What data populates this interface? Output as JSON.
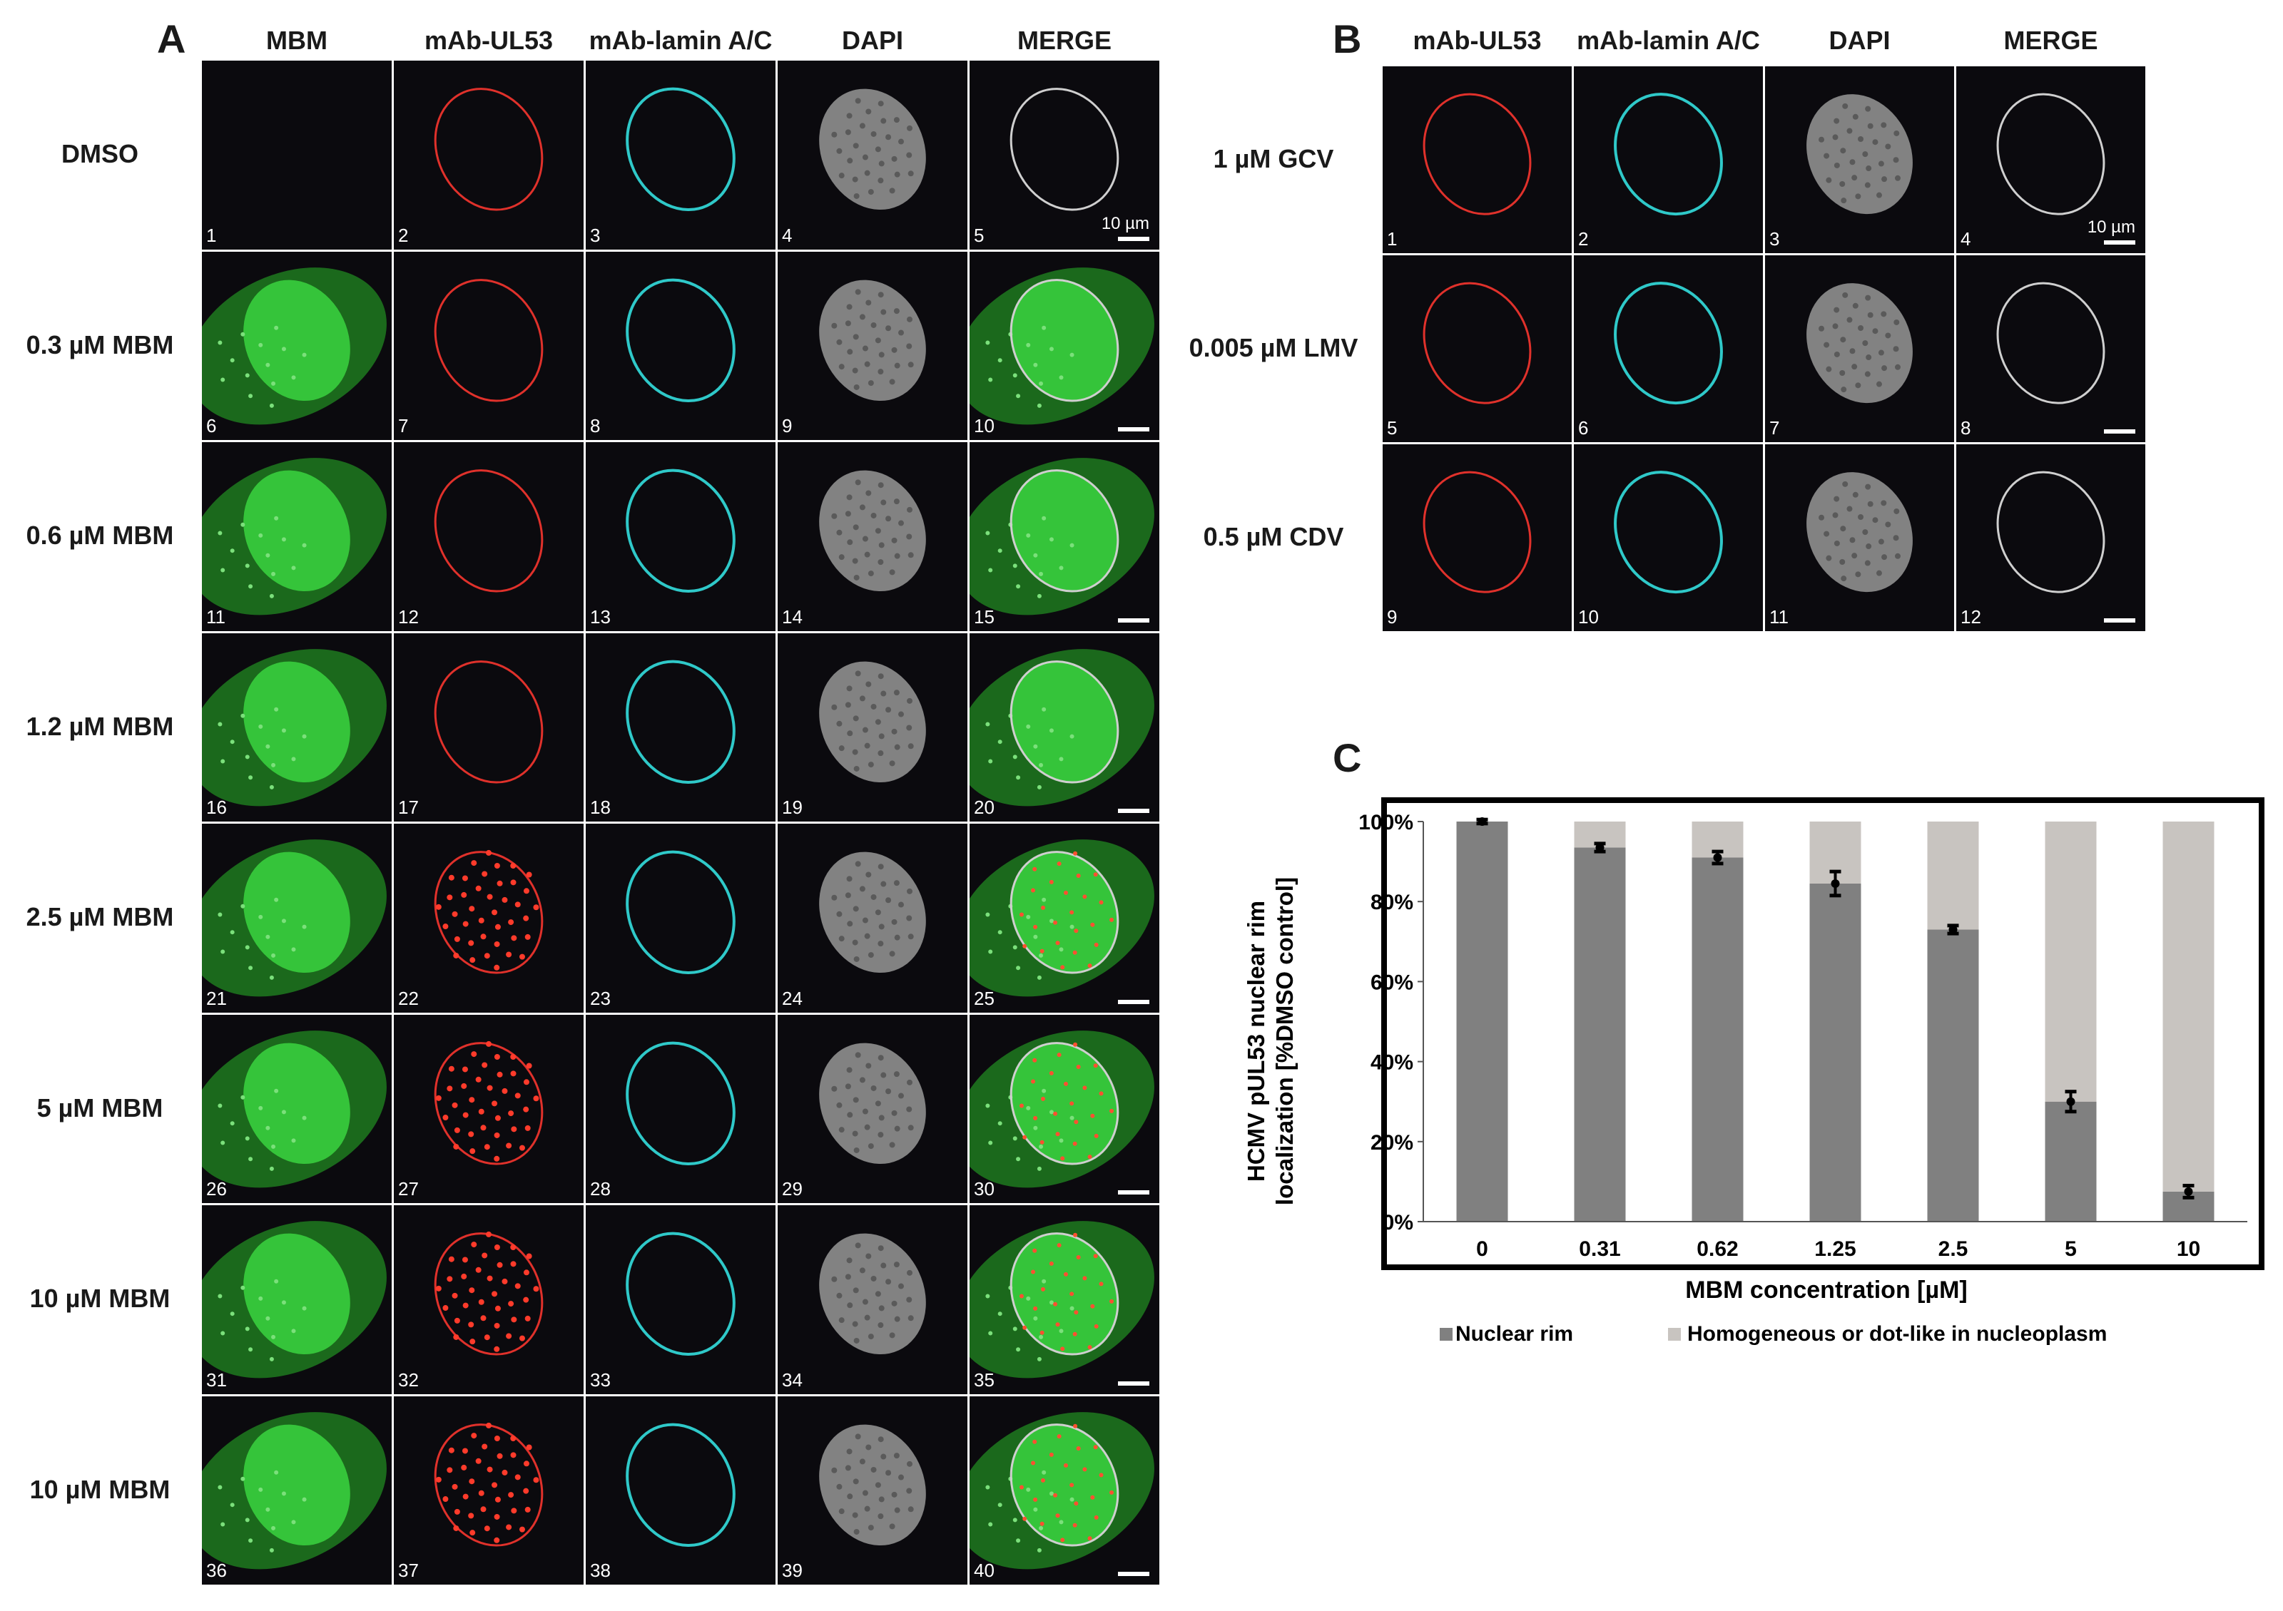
{
  "panel_A": {
    "letter": "A",
    "columns": [
      "MBM",
      "mAb-UL53",
      "mAb-lamin A/C",
      "DAPI",
      "MERGE"
    ],
    "rows": [
      "DMSO",
      "0.3 µM MBM",
      "0.6 µM MBM",
      "1.2 µM MBM",
      "2.5 µM MBM",
      "5 µM MBM",
      "10 µM MBM",
      "10 µM MBM"
    ],
    "scale_label": "10 µm"
  },
  "panel_B": {
    "letter": "B",
    "columns": [
      "mAb-UL53",
      "mAb-lamin A/C",
      "DAPI",
      "MERGE"
    ],
    "rows": [
      "1 µM GCV",
      "0.005 µM LMV",
      "0.5 µM CDV"
    ],
    "scale_label": "10 µm"
  },
  "panel_C": {
    "letter": "C",
    "chart_data": {
      "type": "bar",
      "stacked": true,
      "categories": [
        "0",
        "0.31",
        "0.62",
        "1.25",
        "2.5",
        "5",
        "10"
      ],
      "series": [
        {
          "name": "Nuclear rim",
          "values": [
            100,
            93.5,
            91,
            84.5,
            73,
            30,
            7.5
          ],
          "error": [
            0.5,
            1,
            1.5,
            3,
            1,
            2.5,
            1.5
          ],
          "color": "#808080"
        },
        {
          "name": "Homogeneous or dot-like in nucleoplasm",
          "values": [
            0,
            6.5,
            9,
            15.5,
            27,
            70,
            92.5
          ],
          "color": "#c8c4c0"
        }
      ],
      "xlabel": "MBM concentration [µM]",
      "ylabel_lines": [
        "HCMV pUL53 nuclear rim",
        "localization [%DMSO control]"
      ],
      "y_ticks": [
        "0%",
        "20%",
        "40%",
        "60%",
        "80%",
        "100%"
      ],
      "ylim": [
        0,
        100
      ],
      "grid": false,
      "legend_position": "bottom"
    }
  }
}
